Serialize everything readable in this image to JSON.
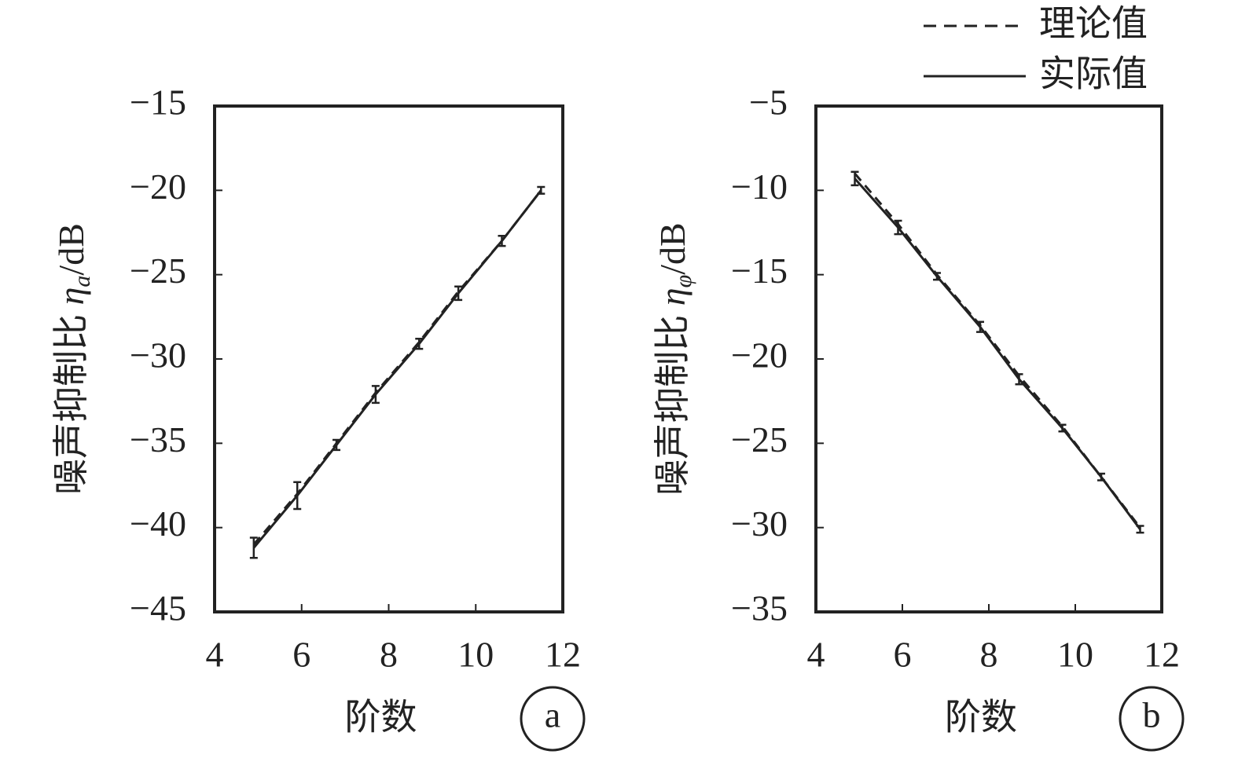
{
  "chart_data": [
    {
      "type": "line",
      "panel_label": "a",
      "x_label": "阶数",
      "y_label": [
        "噪声抑制比 ",
        "η",
        "a",
        "/dB"
      ],
      "x": [
        4.9,
        5.9,
        6.8,
        7.7,
        8.7,
        9.6,
        10.6,
        11.5
      ],
      "series": [
        {
          "color": "#222222",
          "dash": true,
          "values": [
            -41,
            -38,
            -35,
            -32,
            -29,
            -26,
            -23,
            -20
          ]
        },
        {
          "color": "#222222",
          "dash": false,
          "values": [
            -41.2,
            -38.1,
            -35.1,
            -32.1,
            -29.1,
            -26.1,
            -23.0,
            -20.0
          ],
          "errors": [
            0.6,
            0.8,
            0.3,
            0.5,
            0.3,
            0.4,
            0.3,
            0.2
          ]
        }
      ],
      "xlim": [
        4,
        12
      ],
      "xticks": [
        4,
        6,
        8,
        10,
        12
      ],
      "ylim": [
        -45,
        -15
      ],
      "yticks": [
        {
          "value": -45,
          "label": "−45"
        },
        {
          "value": -40,
          "label": "−40"
        },
        {
          "value": -35,
          "label": "−35"
        },
        {
          "value": -30,
          "label": "−30"
        },
        {
          "value": -25,
          "label": "−25"
        },
        {
          "value": -20,
          "label": "−20"
        },
        {
          "value": -15,
          "label": "−15"
        }
      ]
    },
    {
      "type": "line",
      "panel_label": "b",
      "legend": "top-right",
      "x_label": "阶数",
      "y_label": [
        "噪声抑制比 ",
        "η",
        "φ",
        "/dB"
      ],
      "x": [
        4.9,
        5.9,
        6.8,
        7.8,
        8.7,
        9.7,
        10.6,
        11.5
      ],
      "series": [
        {
          "name": "理论值",
          "color": "#222222",
          "dash": true,
          "values": [
            -9,
            -12,
            -15,
            -18,
            -21,
            -24,
            -27,
            -30
          ]
        },
        {
          "name": "实际值",
          "color": "#222222",
          "dash": false,
          "values": [
            -9.3,
            -12.2,
            -15.1,
            -18.1,
            -21.2,
            -24.1,
            -27.0,
            -30.1
          ],
          "errors": [
            0.4,
            0.4,
            0.2,
            0.3,
            0.3,
            0.2,
            0.2,
            0.2
          ]
        }
      ],
      "xlim": [
        4,
        12
      ],
      "xticks": [
        4,
        6,
        8,
        10,
        12
      ],
      "ylim": [
        -35,
        -5
      ],
      "yticks": [
        {
          "value": -35,
          "label": "−35"
        },
        {
          "value": -30,
          "label": "−30"
        },
        {
          "value": -25,
          "label": "−25"
        },
        {
          "value": -20,
          "label": "−20"
        },
        {
          "value": -15,
          "label": "−15"
        },
        {
          "value": -10,
          "label": "−10"
        },
        {
          "value": -5,
          "label": "−5"
        }
      ]
    }
  ]
}
